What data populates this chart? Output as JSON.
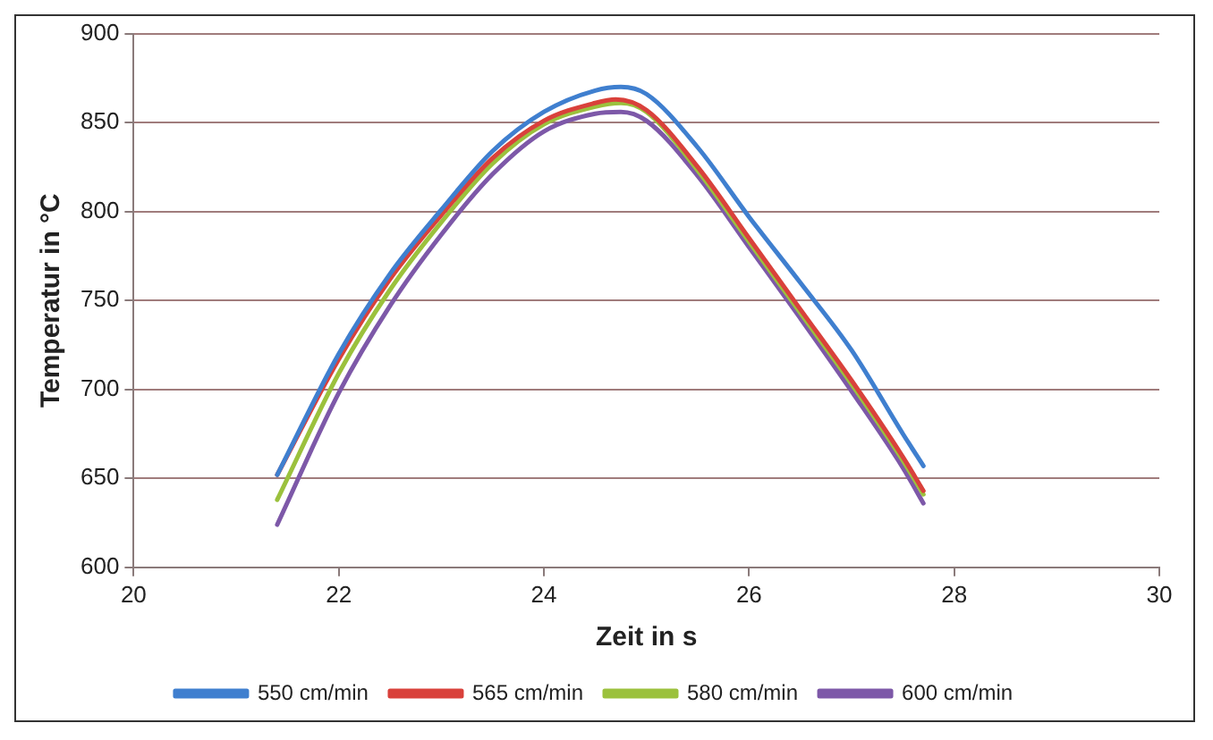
{
  "chart_data": {
    "type": "line",
    "xlabel": "Zeit in s",
    "ylabel": "Temperatur in °C",
    "xlim": [
      20,
      30
    ],
    "xticks": [
      20,
      22,
      24,
      26,
      28,
      30
    ],
    "ylim": [
      600,
      900
    ],
    "yticks": [
      600,
      650,
      700,
      750,
      800,
      850,
      900
    ],
    "grid": "y",
    "legend": "bottom",
    "marker": "none",
    "line_style": "solid",
    "series": [
      {
        "name": "550 cm/min",
        "color": "#3f7fcf",
        "x": [
          21.4,
          22,
          22.5,
          23,
          23.5,
          24,
          24.5,
          24.75,
          25,
          25.5,
          26,
          26.5,
          27,
          27.5,
          27.7
        ],
        "values": [
          652,
          720,
          765,
          801,
          834,
          856,
          868,
          870,
          866,
          836,
          797,
          760,
          722,
          675,
          657
        ]
      },
      {
        "name": "565 cm/min",
        "color": "#d9413b",
        "x": [
          21.4,
          22,
          22.5,
          23,
          23.5,
          24,
          24.5,
          24.7,
          25,
          25.5,
          26,
          26.5,
          27,
          27.5,
          27.7
        ],
        "values": [
          652,
          717,
          762,
          798,
          830,
          851,
          861,
          863,
          857,
          825,
          785,
          745,
          705,
          662,
          643
        ]
      },
      {
        "name": "580 cm/min",
        "color": "#9bc13d",
        "x": [
          21.4,
          22,
          22.5,
          23,
          23.5,
          24,
          24.5,
          24.75,
          25,
          25.5,
          26,
          26.5,
          27,
          27.5,
          27.7
        ],
        "values": [
          638,
          709,
          756,
          794,
          827,
          849,
          859,
          861,
          856,
          823,
          783,
          743,
          703,
          660,
          641
        ]
      },
      {
        "name": "600 cm/min",
        "color": "#7d58a8",
        "x": [
          21.4,
          22,
          22.5,
          23,
          23.5,
          24,
          24.5,
          24.75,
          25,
          25.5,
          26,
          26.5,
          27,
          27.5,
          27.7
        ],
        "values": [
          624,
          698,
          747,
          787,
          821,
          845,
          855,
          856,
          851,
          820,
          780,
          740,
          699,
          656,
          636
        ]
      }
    ]
  }
}
